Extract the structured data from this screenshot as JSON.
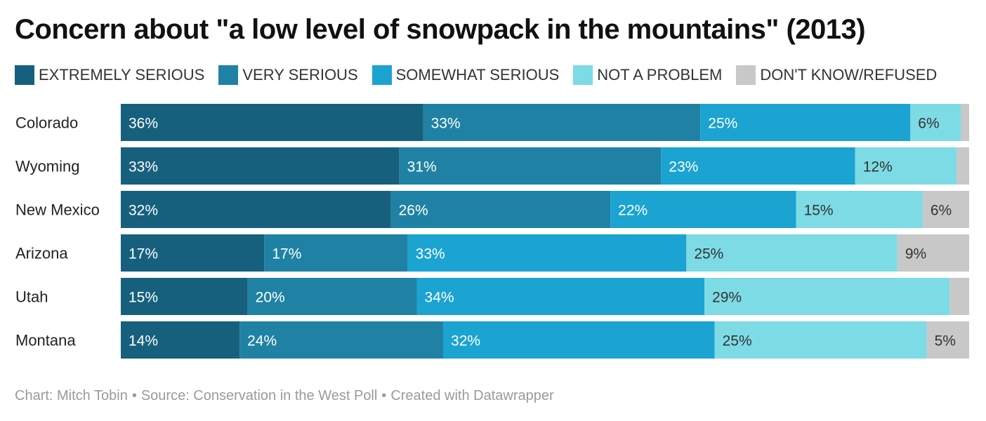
{
  "title": "Concern about \"a low level of snowpack in the mountains\" (2013)",
  "footer": {
    "credit": "Chart: Mitch Tobin",
    "separator": "•",
    "source": "Source: Conservation in the West Poll",
    "tool": "Created with Datawrapper"
  },
  "chart_data": {
    "type": "bar",
    "orientation": "horizontal",
    "stacked": true,
    "normalized": true,
    "title": "Concern about \"a low level of snowpack in the mountains\" (2013)",
    "categories": [
      "Colorado",
      "Wyoming",
      "New Mexico",
      "Arizona",
      "Utah",
      "Montana"
    ],
    "series": [
      {
        "name": "EXTREMELY SERIOUS",
        "color": "#17607d",
        "values": [
          36,
          33,
          32,
          17,
          15,
          14
        ],
        "labels": [
          "36%",
          "33%",
          "32%",
          "17%",
          "15%",
          "14%"
        ]
      },
      {
        "name": "VERY SERIOUS",
        "color": "#1f82a4",
        "values": [
          33,
          31,
          26,
          17,
          20,
          24
        ],
        "labels": [
          "33%",
          "31%",
          "26%",
          "17%",
          "20%",
          "24%"
        ]
      },
      {
        "name": "SOMEWHAT SERIOUS",
        "color": "#1ba3d1",
        "values": [
          25,
          23,
          22,
          33,
          34,
          32
        ],
        "labels": [
          "25%",
          "23%",
          "22%",
          "33%",
          "34%",
          "32%"
        ]
      },
      {
        "name": "NOT A PROBLEM",
        "color": "#7ddbe5",
        "values": [
          6,
          12,
          15,
          25,
          29,
          25
        ],
        "labels": [
          "6%",
          "12%",
          "15%",
          "25%",
          "29%",
          "25%"
        ]
      },
      {
        "name": "DON'T KNOW/REFUSED",
        "color": "#c8c8c8",
        "values": [
          1,
          1.5,
          5.5,
          8.5,
          2.3,
          5
        ],
        "labels": [
          "",
          "",
          "6%",
          "9%",
          "",
          "5%"
        ]
      }
    ],
    "label_colors": [
      "#ffffff",
      "#ffffff",
      "#ffffff",
      "#333333",
      "#333333"
    ],
    "legend_position": "top-left",
    "grid": false,
    "xlim": [
      0,
      100
    ]
  }
}
